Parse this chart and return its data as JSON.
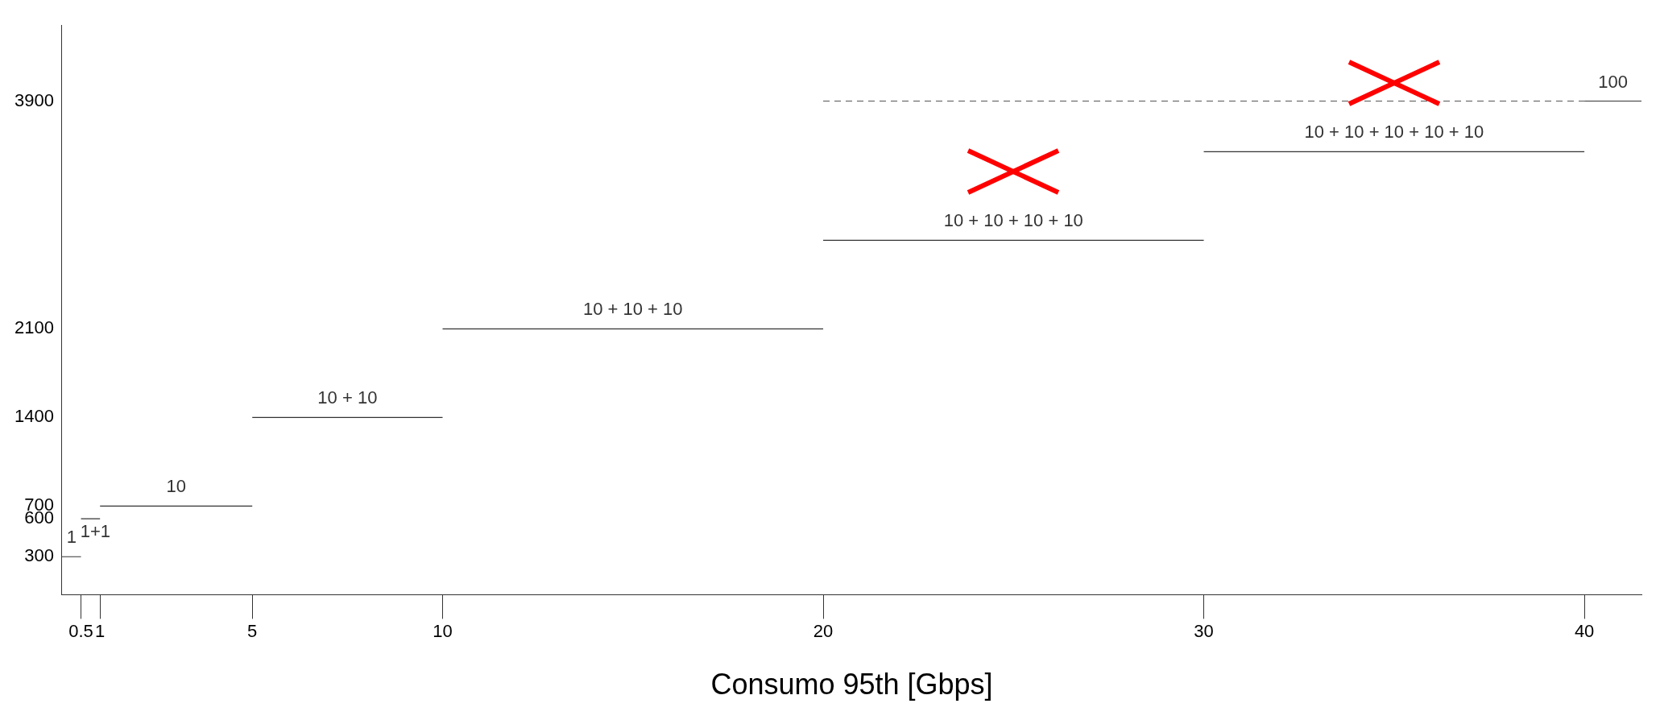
{
  "chart_data": {
    "type": "line",
    "xlabel": "Consumo 95th [Gbps]",
    "xlim": [
      0,
      41.5
    ],
    "xticks": [
      0.5,
      1,
      5,
      10,
      20,
      30,
      40
    ],
    "ylim": [
      0,
      4500
    ],
    "yticks": [
      300,
      600,
      700,
      1400,
      2100,
      3900
    ],
    "grid": false,
    "legend": false,
    "marker": "none",
    "series": [
      {
        "name": "1",
        "color": "#333333",
        "x": [
          0,
          0.5
        ],
        "values": [
          300,
          300
        ]
      },
      {
        "name": "1+1",
        "color": "#333333",
        "x": [
          0.5,
          1
        ],
        "values": [
          600,
          600
        ]
      },
      {
        "name": "10",
        "color": "#333333",
        "x": [
          1,
          5
        ],
        "values": [
          700,
          700
        ]
      },
      {
        "name": "10 + 10",
        "color": "#333333",
        "x": [
          5,
          10
        ],
        "values": [
          1400,
          1400
        ]
      },
      {
        "name": "10 + 10 + 10",
        "color": "#333333",
        "x": [
          10,
          20
        ],
        "values": [
          2100,
          2100
        ]
      },
      {
        "name": "10 + 10 + 10 + 10",
        "color": "#333333",
        "x": [
          20,
          30
        ],
        "values": [
          2800,
          2800
        ]
      },
      {
        "name": "10 + 10 + 10 + 10 + 10",
        "color": "#333333",
        "x": [
          30,
          40
        ],
        "values": [
          3500,
          3500
        ]
      },
      {
        "color": "#555555",
        "x": [
          20,
          40
        ],
        "values": [
          3900,
          3900
        ],
        "line_style": "dashed"
      },
      {
        "name": "100",
        "color": "#333333",
        "x": [
          40,
          41.5
        ],
        "values": [
          3900,
          3900
        ]
      }
    ]
  }
}
